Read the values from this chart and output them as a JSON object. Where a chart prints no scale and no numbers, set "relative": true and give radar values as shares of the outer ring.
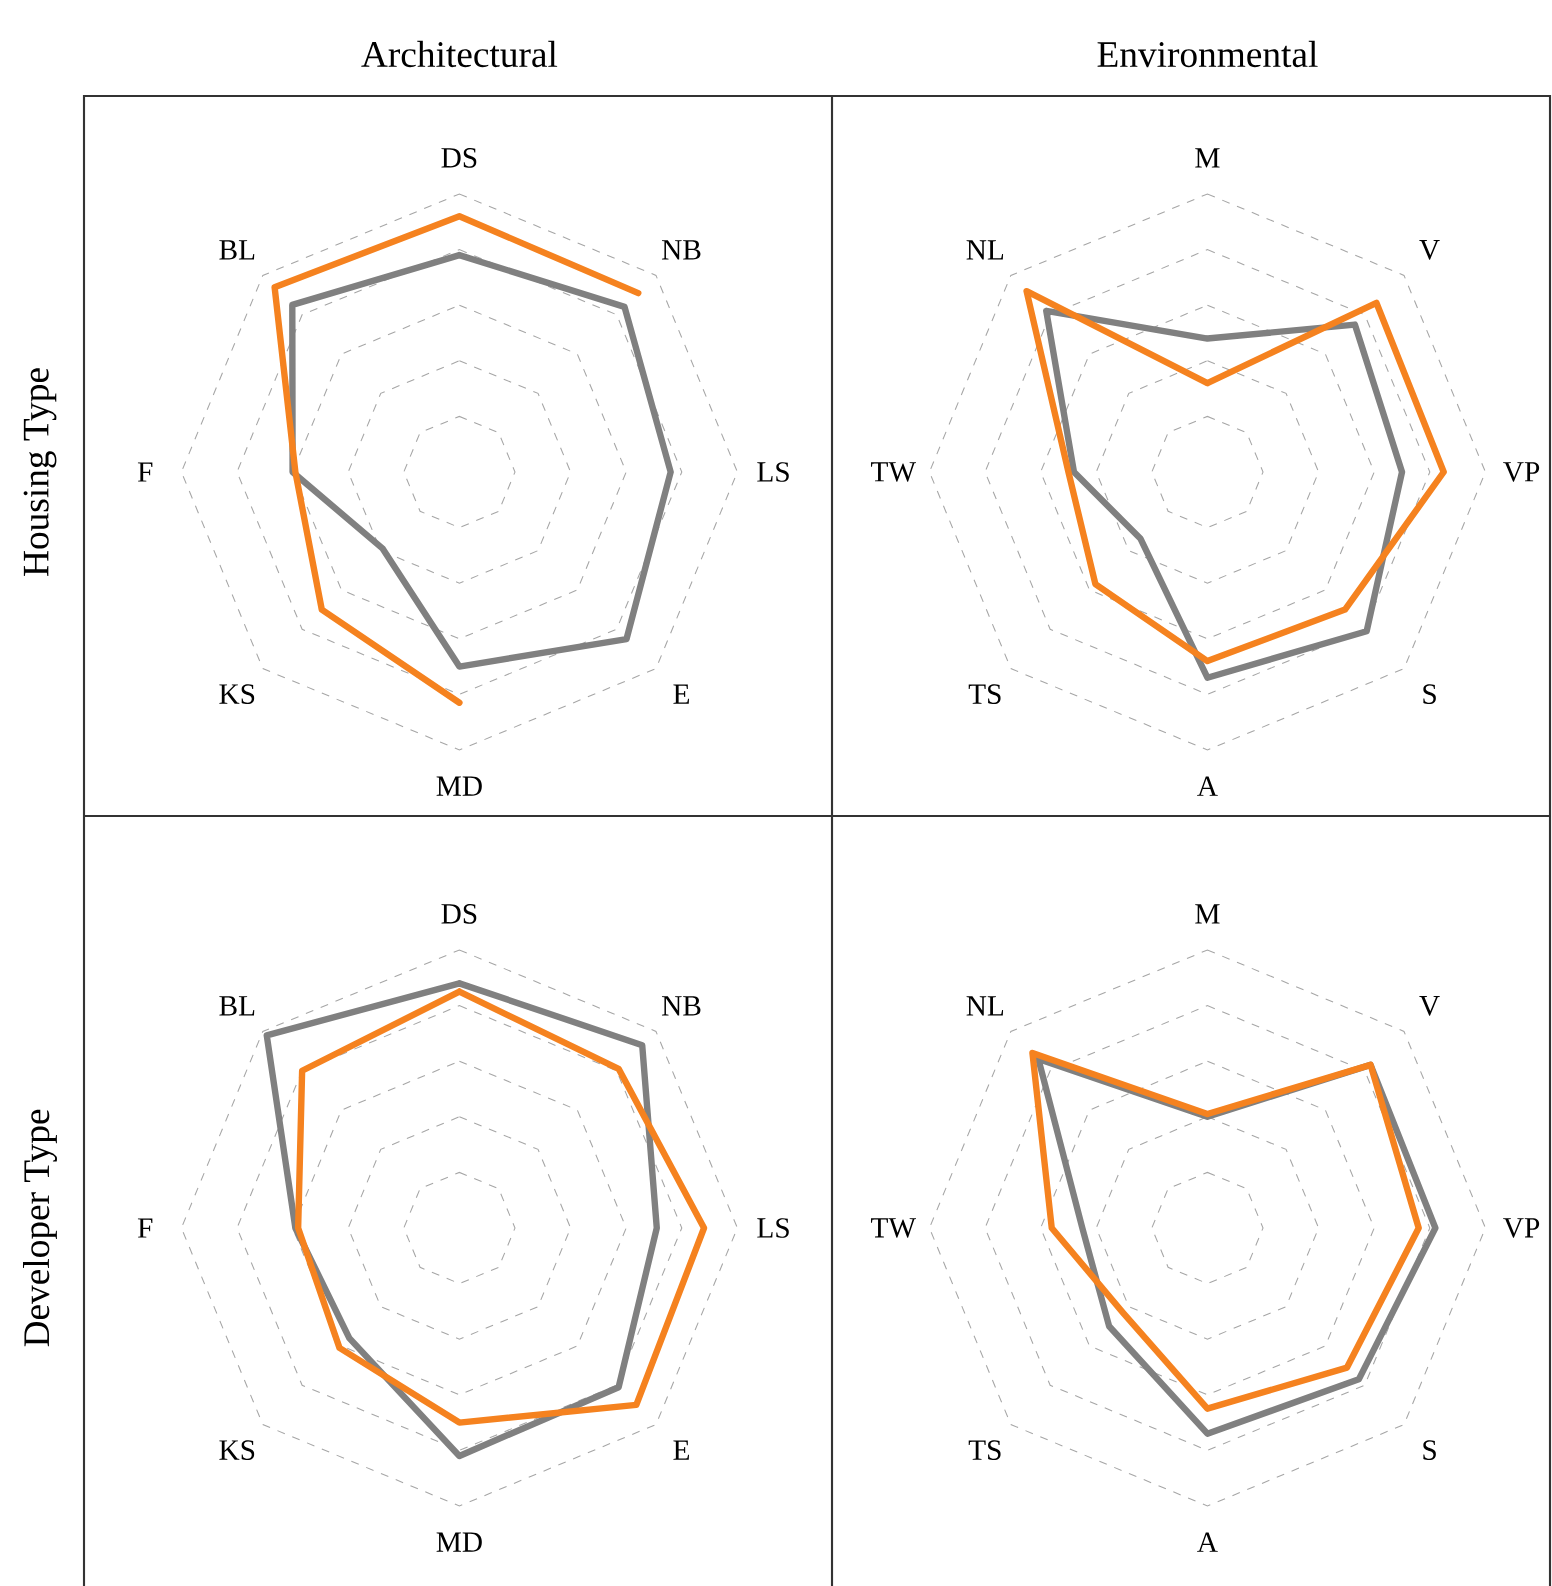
{
  "chart_data": [
    {
      "type": "radar",
      "title": "Architectural",
      "ylabel": "Housing Type",
      "relative": true,
      "grid": true,
      "categories": [
        "DS",
        "NB",
        "LS",
        "E",
        "MD",
        "KS",
        "F",
        "BL"
      ],
      "series": [
        {
          "color": "#808080",
          "values": [
            0.78,
            0.84,
            0.76,
            0.85,
            0.7,
            0.39,
            0.6,
            0.85
          ]
        },
        {
          "color": "#f5821f",
          "values": [
            0.92,
            0.91,
            null,
            null,
            0.83,
            0.7,
            0.59,
            0.94
          ]
        }
      ]
    },
    {
      "type": "radar",
      "title": "Environmental",
      "relative": true,
      "grid": true,
      "categories": [
        "M",
        "V",
        "VP",
        "S",
        "A",
        "TS",
        "TW",
        "NL"
      ],
      "series": [
        {
          "color": "#808080",
          "values": [
            0.48,
            0.75,
            0.7,
            0.81,
            0.74,
            0.34,
            0.48,
            0.82
          ]
        },
        {
          "color": "#f5821f",
          "values": [
            0.32,
            0.86,
            0.85,
            0.7,
            0.68,
            0.57,
            0.5,
            0.92
          ]
        }
      ]
    },
    {
      "type": "radar",
      "ylabel": "Developer Type",
      "relative": true,
      "grid": true,
      "categories": [
        "DS",
        "NB",
        "LS",
        "E",
        "MD",
        "KS",
        "F",
        "BL"
      ],
      "series": [
        {
          "color": "#808080",
          "values": [
            0.88,
            0.93,
            0.71,
            0.81,
            0.82,
            0.56,
            0.59,
            0.98
          ]
        },
        {
          "color": "#f5821f",
          "values": [
            0.85,
            0.81,
            0.88,
            0.9,
            0.7,
            0.61,
            0.58,
            0.8
          ]
        }
      ]
    },
    {
      "type": "radar",
      "relative": true,
      "grid": true,
      "categories": [
        "M",
        "V",
        "VP",
        "S",
        "A",
        "TS",
        "TW",
        "NL"
      ],
      "series": [
        {
          "color": "#808080",
          "values": [
            0.4,
            0.83,
            0.82,
            0.77,
            0.74,
            0.5,
            0.45,
            0.86
          ]
        },
        {
          "color": "#f5821f",
          "values": [
            0.41,
            0.83,
            0.76,
            0.71,
            0.65,
            0.43,
            0.56,
            0.89
          ]
        }
      ]
    }
  ]
}
